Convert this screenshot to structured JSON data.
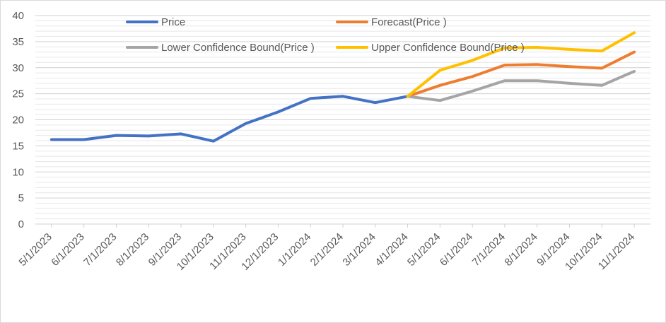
{
  "chart_data": {
    "type": "line",
    "categories": [
      "5/1/2023",
      "6/1/2023",
      "7/1/2023",
      "8/1/2023",
      "9/1/2023",
      "10/1/2023",
      "11/1/2023",
      "12/1/2023",
      "1/1/2024",
      "2/1/2024",
      "3/1/2024",
      "4/1/2024",
      "5/1/2024",
      "6/1/2024",
      "7/1/2024",
      "8/1/2024",
      "9/1/2024",
      "10/1/2024",
      "11/1/2024"
    ],
    "ylim": [
      0,
      40
    ],
    "yticks": [
      0,
      5,
      10,
      15,
      20,
      25,
      30,
      35,
      40
    ],
    "grid": true,
    "legend_position": "top",
    "series": [
      {
        "name": "Price",
        "color": "#4472C4",
        "values": [
          16.2,
          16.2,
          17.0,
          16.9,
          17.3,
          15.9,
          19.3,
          21.5,
          24.1,
          24.5,
          23.3,
          24.5,
          null,
          null,
          null,
          null,
          null,
          null,
          null
        ]
      },
      {
        "name": "Forecast(Price )",
        "color": "#ED7D31",
        "values": [
          null,
          null,
          null,
          null,
          null,
          null,
          null,
          null,
          null,
          null,
          null,
          24.5,
          26.6,
          28.3,
          30.5,
          30.6,
          30.2,
          29.9,
          33.0
        ]
      },
      {
        "name": "Lower Confidence Bound(Price )",
        "color": "#A5A5A5",
        "values": [
          null,
          null,
          null,
          null,
          null,
          null,
          null,
          null,
          null,
          null,
          null,
          24.5,
          23.7,
          25.5,
          27.5,
          27.5,
          27.0,
          26.6,
          29.3
        ]
      },
      {
        "name": "Upper Confidence Bound(Price )",
        "color": "#FFC000",
        "values": [
          null,
          null,
          null,
          null,
          null,
          null,
          null,
          null,
          null,
          null,
          null,
          24.5,
          29.5,
          31.4,
          33.8,
          33.9,
          33.5,
          33.2,
          36.7
        ]
      }
    ]
  }
}
